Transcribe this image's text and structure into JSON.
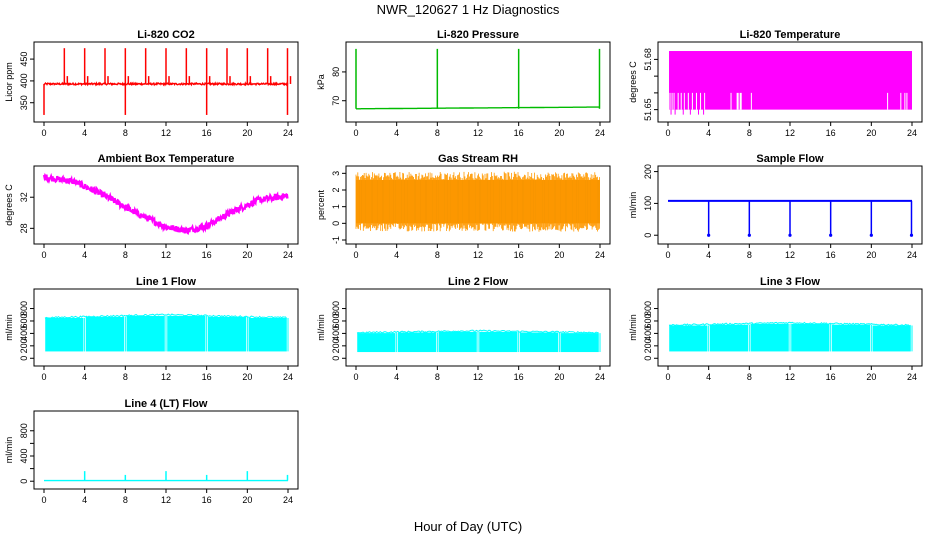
{
  "figure": {
    "title": "NWR_120627  1 Hz Diagnostics",
    "xlabel": "Hour of Day (UTC)"
  },
  "chart_data": [
    {
      "id": "co2",
      "type": "line",
      "title": "Li-820 CO2",
      "ylabel": "Licor ppm",
      "color": "#ff0000",
      "xlim": [
        0,
        24
      ],
      "ylim": [
        315,
        480
      ],
      "xticks": [
        0,
        4,
        8,
        12,
        16,
        20,
        24
      ],
      "yticks": [
        350,
        400,
        450
      ],
      "ytick_labels": [
        "350",
        "400",
        "450"
      ],
      "baseline": 393,
      "noise": 4,
      "spikes_up": [
        2,
        4,
        6,
        8,
        10,
        12,
        14,
        16,
        18,
        20,
        22,
        24
      ],
      "spike_up_value": 475,
      "spikes_down": [
        0,
        8,
        16,
        24
      ],
      "spike_down_value": 322
    },
    {
      "id": "pressure",
      "type": "line",
      "title": "Li-820 Pressure",
      "ylabel": "kPa",
      "color": "#00bb00",
      "xlim": [
        0,
        24
      ],
      "ylim": [
        64,
        89
      ],
      "xticks": [
        0,
        4,
        8,
        12,
        16,
        20,
        24
      ],
      "yticks": [
        70,
        80
      ],
      "ytick_labels": [
        "70",
        "80"
      ],
      "baseline": 67.2,
      "baseline_end": 67.8,
      "spikes_up": [
        0,
        8,
        16,
        24
      ],
      "spike_up_value": 88
    },
    {
      "id": "temp",
      "type": "line",
      "title": "Li-820 Temperature",
      "ylabel": "degrees C",
      "color": "#ff00ff",
      "xlim": [
        0,
        24
      ],
      "ylim": [
        51.645,
        51.688
      ],
      "xticks": [
        0,
        4,
        8,
        12,
        16,
        20,
        24
      ],
      "yticks": [
        51.65,
        51.66,
        51.67,
        51.68
      ],
      "ytick_labels": [
        "51.65",
        "",
        "",
        "51.68"
      ],
      "fill_start": 0.1,
      "fill_end": 24,
      "fill_low": 51.65,
      "fill_high": 51.685
    },
    {
      "id": "ambient",
      "type": "line",
      "title": "Ambient Box Temperature",
      "ylabel": "degrees C",
      "color": "#ff00ff",
      "xlim": [
        0,
        24
      ],
      "ylim": [
        26.5,
        35.5
      ],
      "xticks": [
        0,
        4,
        8,
        12,
        16,
        20,
        24
      ],
      "yticks": [
        28,
        32
      ],
      "ytick_labels": [
        "28",
        "32"
      ],
      "x": [
        0,
        3,
        6,
        9,
        12,
        14,
        16,
        18,
        21,
        24
      ],
      "y": [
        34.6,
        34.0,
        32.2,
        30.0,
        28.2,
        27.7,
        28.3,
        29.8,
        31.6,
        32.2
      ]
    },
    {
      "id": "rh",
      "type": "line",
      "title": "Gas Stream RH",
      "ylabel": "percent",
      "color": "#ff9900",
      "xlim": [
        0,
        24
      ],
      "ylim": [
        -1,
        3.2
      ],
      "xticks": [
        0,
        4,
        8,
        12,
        16,
        20,
        24
      ],
      "yticks": [
        -1,
        0,
        1,
        2,
        3
      ],
      "ytick_labels": [
        "-1",
        "0",
        "1",
        "2",
        "3"
      ],
      "band_low": 0.0,
      "band_high": 2.6
    },
    {
      "id": "sample",
      "type": "line",
      "title": "Sample Flow",
      "ylabel": "ml/min",
      "color": "#0000ff",
      "xlim": [
        0,
        24
      ],
      "ylim": [
        -15,
        205
      ],
      "xticks": [
        0,
        4,
        8,
        12,
        16,
        20,
        24
      ],
      "yticks": [
        0,
        100,
        200
      ],
      "ytick_labels": [
        "0",
        "100",
        "200"
      ],
      "baseline": 108,
      "drops": [
        4,
        8,
        12,
        16,
        20,
        24
      ],
      "drop_value": 0
    },
    {
      "id": "line1",
      "type": "line",
      "title": "Line 1 Flow",
      "ylabel": "ml/min",
      "color": "#00ffff",
      "xlim": [
        0,
        24
      ],
      "ylim": [
        -60,
        1050
      ],
      "xticks": [
        0,
        4,
        8,
        12,
        16,
        20,
        24
      ],
      "yticks": [
        0,
        200,
        400,
        600,
        800
      ],
      "ytick_labels": [
        "0",
        "200",
        "400",
        "600",
        "800"
      ],
      "band_low": 110,
      "band_high": 640,
      "band_high_mid": 690,
      "gaps": [
        4,
        8,
        12,
        16,
        20,
        24
      ]
    },
    {
      "id": "line2",
      "type": "line",
      "title": "Line 2 Flow",
      "ylabel": "ml/min",
      "color": "#00ffff",
      "xlim": [
        0,
        24
      ],
      "ylim": [
        -60,
        1050
      ],
      "xticks": [
        0,
        4,
        8,
        12,
        16,
        20,
        24
      ],
      "yticks": [
        0,
        200,
        400,
        600,
        800
      ],
      "ytick_labels": [
        "0",
        "200",
        "400",
        "600",
        "800"
      ],
      "band_low": 100,
      "band_high": 400,
      "band_high_mid": 430,
      "gaps": [
        4,
        8,
        12,
        16,
        20,
        24
      ]
    },
    {
      "id": "line3",
      "type": "line",
      "title": "Line 3 Flow",
      "ylabel": "ml/min",
      "color": "#00ffff",
      "xlim": [
        0,
        24
      ],
      "ylim": [
        -60,
        1050
      ],
      "xticks": [
        0,
        4,
        8,
        12,
        16,
        20,
        24
      ],
      "yticks": [
        0,
        200,
        400,
        600,
        800
      ],
      "ytick_labels": [
        "0",
        "200",
        "400",
        "600",
        "800"
      ],
      "band_low": 110,
      "band_high": 520,
      "band_high_mid": 560,
      "gaps": [
        4,
        8,
        12,
        16,
        20,
        24
      ]
    },
    {
      "id": "line4",
      "type": "line",
      "title": "Line 4 (LT) Flow",
      "ylabel": "ml/min",
      "color": "#00ffff",
      "xlim": [
        0,
        24
      ],
      "ylim": [
        -60,
        1050
      ],
      "xticks": [
        0,
        4,
        8,
        12,
        16,
        20,
        24
      ],
      "yticks": [
        0,
        200,
        400,
        600,
        800
      ],
      "ytick_labels": [
        "0",
        "",
        "400",
        "",
        "800"
      ],
      "baseline": 10,
      "spikes_up": [
        4,
        8,
        12,
        16,
        20,
        24
      ],
      "spike_up_values": [
        160,
        100,
        160,
        100,
        160,
        100
      ]
    }
  ]
}
